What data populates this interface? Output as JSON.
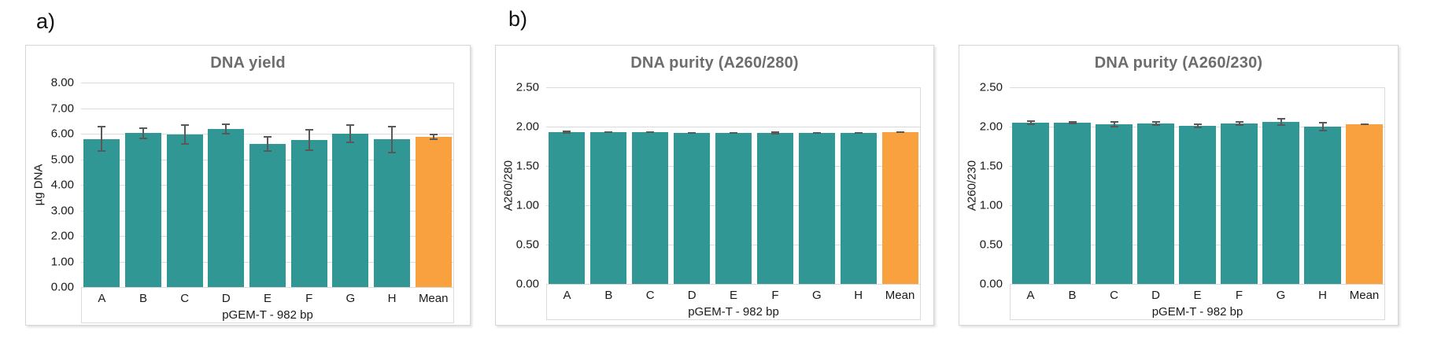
{
  "figure_labels": {
    "a": "a)",
    "b": "b)"
  },
  "colors": {
    "bar_teal": "#309795",
    "bar_highlight_orange": "#f9a13f",
    "title_gray": "#6d6d6d",
    "gridline": "#dbdbdb",
    "error_bar": "#595959",
    "text": "#1a1a1a"
  },
  "chart_data": [
    {
      "type": "bar",
      "title": "DNA yield",
      "ylabel": "µg DNA",
      "xlabel": "pGEM-T - 982 bp",
      "categories": [
        "A",
        "B",
        "C",
        "D",
        "E",
        "F",
        "G",
        "H",
        "Mean"
      ],
      "values": [
        5.8,
        6.02,
        5.97,
        6.18,
        5.6,
        5.76,
        5.99,
        5.78,
        5.88
      ],
      "errors": [
        0.5,
        0.24,
        0.4,
        0.21,
        0.32,
        0.44,
        0.37,
        0.54,
        0.12
      ],
      "highlight_category": "Mean",
      "ylim": [
        0,
        8
      ],
      "ystep": 1,
      "tick_decimals": 2,
      "grid": true,
      "legend": "none"
    },
    {
      "type": "bar",
      "title": "DNA purity (A260/280)",
      "ylabel": "A260/280",
      "xlabel": "pGEM-T - 982 bp",
      "categories": [
        "A",
        "B",
        "C",
        "D",
        "E",
        "F",
        "G",
        "H",
        "Mean"
      ],
      "values": [
        1.93,
        1.93,
        1.93,
        1.92,
        1.92,
        1.92,
        1.92,
        1.92,
        1.93
      ],
      "errors": [
        0.02,
        0.01,
        0.01,
        0.01,
        0.01,
        0.02,
        0.01,
        0.01,
        0.01
      ],
      "highlight_category": "Mean",
      "ylim": [
        0,
        2.5
      ],
      "ystep": 0.5,
      "tick_decimals": 2,
      "grid": true,
      "legend": "none"
    },
    {
      "type": "bar",
      "title": "DNA purity (A260/230)",
      "ylabel": "A260/230",
      "xlabel": "pGEM-T - 982 bp",
      "categories": [
        "A",
        "B",
        "C",
        "D",
        "E",
        "F",
        "G",
        "H",
        "Mean"
      ],
      "values": [
        2.05,
        2.05,
        2.03,
        2.04,
        2.01,
        2.04,
        2.06,
        2.0,
        2.03
      ],
      "errors": [
        0.03,
        0.02,
        0.04,
        0.03,
        0.03,
        0.03,
        0.05,
        0.06,
        0.01
      ],
      "highlight_category": "Mean",
      "ylim": [
        0,
        2.5
      ],
      "ystep": 0.5,
      "tick_decimals": 2,
      "grid": true,
      "legend": "none"
    }
  ]
}
